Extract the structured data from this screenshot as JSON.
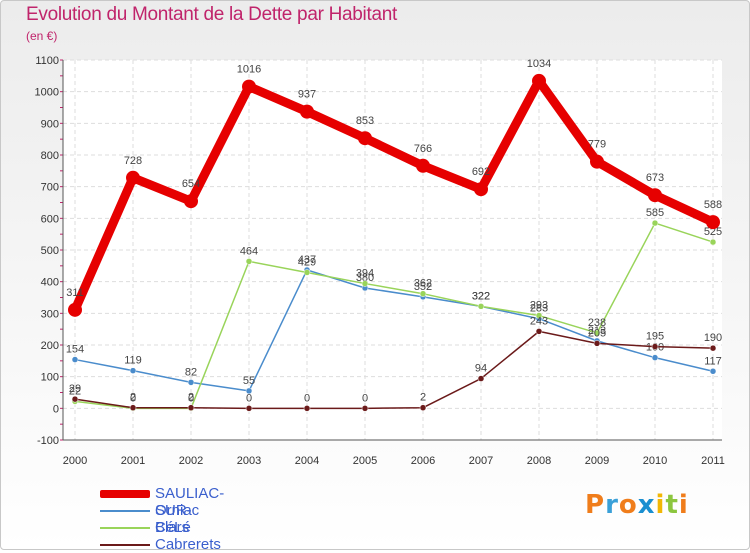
{
  "title": "Evolution du Montant de la Dette par Habitant",
  "unit": "(en €)",
  "logo": {
    "letters": [
      "P",
      "r",
      "o",
      "x",
      "i",
      "t",
      "i"
    ],
    "colors": [
      "#f07d1b",
      "#3aa0d8",
      "#f07d1b",
      "#1a8fd0",
      "#f2b705",
      "#8cc63f",
      "#f07d1b"
    ]
  },
  "chart_data": {
    "type": "line",
    "title": "Evolution du Montant de la Dette par Habitant",
    "ylabel": "(en €)",
    "x": [
      2000,
      2001,
      2002,
      2003,
      2004,
      2005,
      2006,
      2007,
      2008,
      2009,
      2010,
      2011
    ],
    "ylim": [
      -100,
      1100
    ],
    "yticks": [
      -100,
      0,
      100,
      200,
      300,
      400,
      500,
      600,
      700,
      800,
      900,
      1000,
      1100
    ],
    "grid": true,
    "series": [
      {
        "name": "SAULIAC-SUR-CéLé",
        "color": "#e60000",
        "values": [
          311,
          728,
          654,
          1016,
          937,
          853,
          766,
          692,
          1034,
          779,
          673,
          588
        ]
      },
      {
        "name": "Orniac",
        "color": "#4a8ccc",
        "values": [
          154,
          119,
          82,
          55,
          437,
          380,
          352,
          322,
          283,
          213,
          160,
          117
        ]
      },
      {
        "name": "Blars",
        "color": "#99d45a",
        "values": [
          22,
          0,
          0,
          464,
          429,
          394,
          362,
          322,
          293,
          238,
          585,
          525
        ]
      },
      {
        "name": "Cabrerets",
        "color": "#6b1a1a",
        "values": [
          29,
          2,
          2,
          0,
          0,
          0,
          2,
          94,
          243,
          205,
          195,
          190
        ]
      }
    ]
  }
}
